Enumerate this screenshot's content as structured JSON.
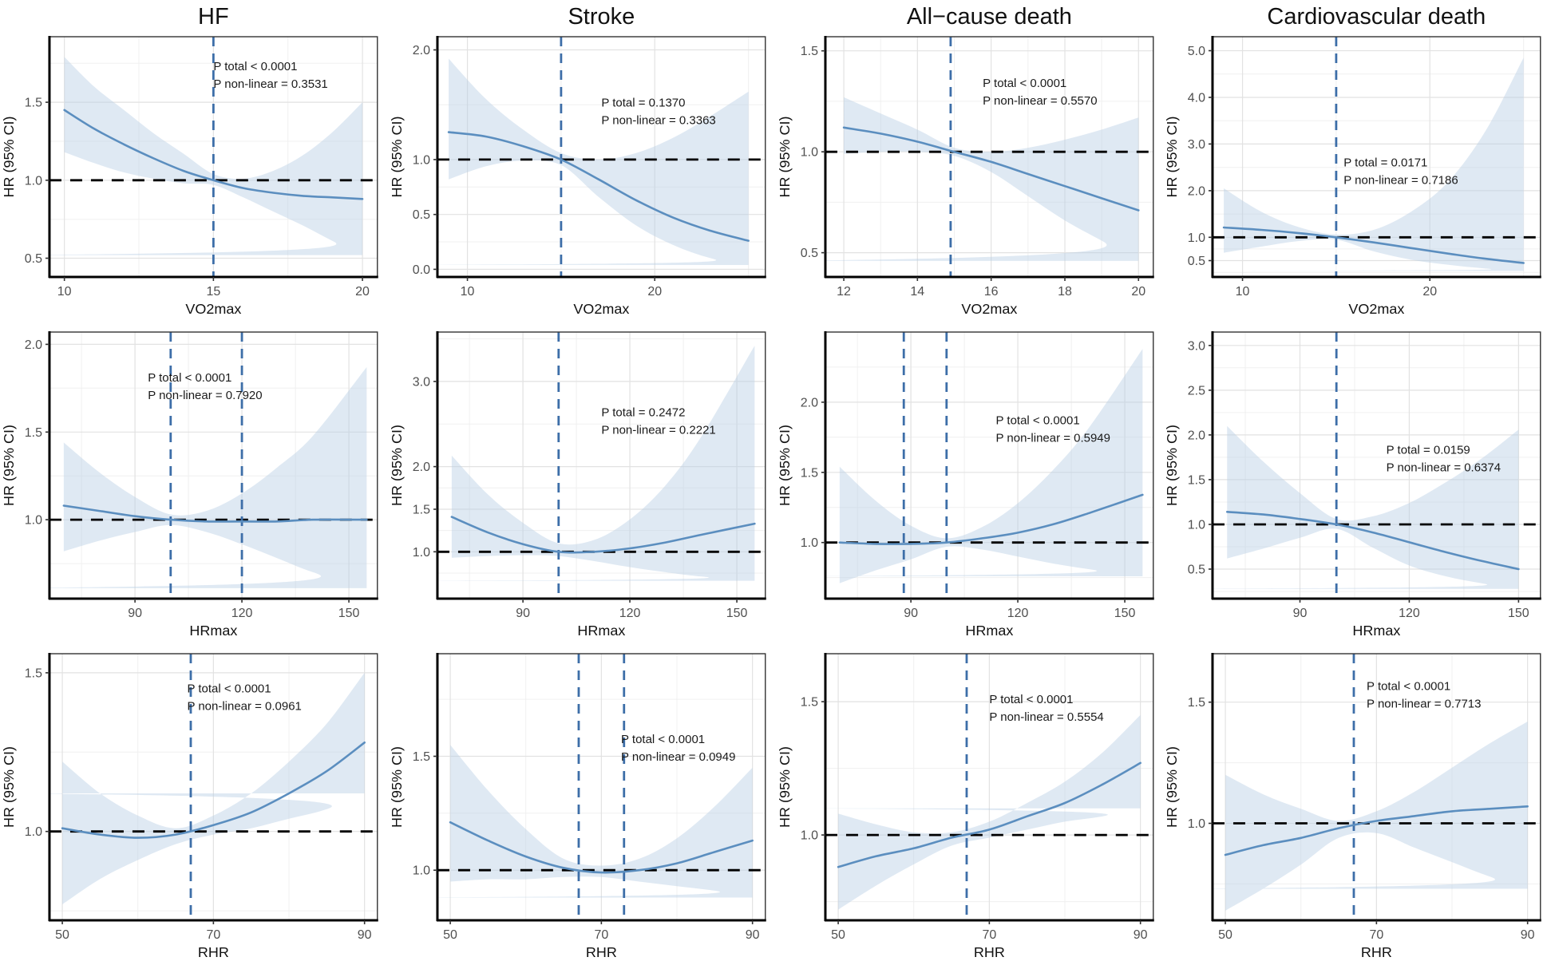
{
  "figure": {
    "ylabel": "HR (95% CI)",
    "columns": [
      "HF",
      "Stroke",
      "All-cause death",
      "Cardiovascular death"
    ],
    "rows": [
      "VO2max",
      "HRmax",
      "RHR"
    ],
    "colors": {
      "curve": "#5b8ebf",
      "band": "#b9cfe4",
      "vline": "#3d6ea8",
      "hline": "#000000",
      "grid_major": "#e2e2e2",
      "grid_minor": "#f0f0f0",
      "axis": "#000000",
      "border": "#333333",
      "tick_text": "#4f4f4f",
      "label_text": "#111111",
      "title_text": "#111111",
      "annot_text": "#1a1a1a"
    }
  },
  "chart_data": [
    {
      "type": "line",
      "outcome": "HF",
      "exposure": "VO2max",
      "title": "HF",
      "show_title": true,
      "xlabel": "VO2max",
      "ylabel": "HR (95% CI)",
      "xlim": [
        9.5,
        20.5
      ],
      "ylim": [
        0.38,
        1.92
      ],
      "x_ticks": [
        10,
        15,
        20
      ],
      "y_ticks": [
        0.5,
        1.0,
        1.5
      ],
      "vlines": [
        15
      ],
      "hline": 1.0,
      "annotations": [
        "P total < 0.0001",
        "P non-linear = 0.3531"
      ],
      "annot_xy": [
        0.5,
        0.1
      ],
      "x": [
        10,
        11,
        12,
        13,
        14,
        15,
        16,
        17,
        18,
        19,
        20
      ],
      "hr": [
        1.45,
        1.33,
        1.23,
        1.14,
        1.06,
        1.0,
        0.95,
        0.92,
        0.9,
        0.89,
        0.88
      ],
      "ci_upper": [
        1.79,
        1.6,
        1.45,
        1.3,
        1.17,
        1.04,
        1.01,
        1.06,
        1.16,
        1.31,
        1.5
      ],
      "ci_lower": [
        1.18,
        1.11,
        1.05,
        1.01,
        0.98,
        0.97,
        0.89,
        0.8,
        0.71,
        0.61,
        0.52
      ]
    },
    {
      "type": "line",
      "outcome": "Stroke",
      "exposure": "VO2max",
      "title": "Stroke",
      "show_title": true,
      "xlabel": "VO2max",
      "ylabel": "HR (95% CI)",
      "xlim": [
        8.4,
        25.9
      ],
      "ylim": [
        -0.07,
        2.12
      ],
      "x_ticks": [
        10,
        20
      ],
      "y_ticks": [
        0.0,
        0.5,
        1.0,
        2.0
      ],
      "vlines": [
        15
      ],
      "hline": 1.0,
      "annotations": [
        "P total = 0.1370",
        "P non-linear = 0.3363"
      ],
      "annot_xy": [
        0.5,
        0.25
      ],
      "x": [
        9,
        11,
        13,
        15,
        17,
        19,
        21,
        23,
        25
      ],
      "hr": [
        1.25,
        1.21,
        1.12,
        1.0,
        0.82,
        0.63,
        0.47,
        0.35,
        0.26
      ],
      "ci_upper": [
        1.92,
        1.55,
        1.27,
        1.06,
        1.0,
        1.06,
        1.2,
        1.4,
        1.62
      ],
      "ci_lower": [
        0.82,
        0.94,
        0.99,
        0.95,
        0.66,
        0.4,
        0.22,
        0.1,
        0.04
      ]
    },
    {
      "type": "line",
      "outcome": "All-cause death",
      "exposure": "VO2max",
      "title": "All−cause death",
      "show_title": true,
      "xlabel": "VO2max",
      "ylabel": "HR (95% CI)",
      "xlim": [
        11.5,
        20.4
      ],
      "ylim": [
        0.38,
        1.57
      ],
      "x_ticks": [
        12,
        14,
        16,
        18,
        20
      ],
      "y_ticks": [
        0.5,
        1.0,
        1.5
      ],
      "vlines": [
        14.9
      ],
      "hline": 1.0,
      "annotations": [
        "P total < 0.0001",
        "P non-linear = 0.5570"
      ],
      "annot_xy": [
        0.48,
        0.17
      ],
      "x": [
        12,
        13,
        14,
        15,
        16,
        17,
        18,
        19,
        20
      ],
      "hr": [
        1.12,
        1.09,
        1.05,
        1.0,
        0.95,
        0.89,
        0.83,
        0.77,
        0.71
      ],
      "ci_upper": [
        1.27,
        1.19,
        1.11,
        1.02,
        1.0,
        1.02,
        1.06,
        1.11,
        1.17
      ],
      "ci_lower": [
        0.99,
        1.0,
        1.0,
        0.98,
        0.9,
        0.78,
        0.66,
        0.56,
        0.46
      ]
    },
    {
      "type": "line",
      "outcome": "Cardiovascular death",
      "exposure": "VO2max",
      "title": "Cardiovascular death",
      "show_title": true,
      "xlabel": "VO2max",
      "ylabel": "HR (95% CI)",
      "xlim": [
        8.4,
        25.9
      ],
      "ylim": [
        0.15,
        5.3
      ],
      "x_ticks": [
        10,
        20
      ],
      "y_ticks": [
        0.5,
        1.0,
        2.0,
        3.0,
        4.0,
        5.0
      ],
      "vlines": [
        15
      ],
      "hline": 1.0,
      "annotations": [
        "P total = 0.0171",
        "P non-linear = 0.7186"
      ],
      "annot_xy": [
        0.4,
        0.5
      ],
      "x": [
        9,
        11,
        13,
        15,
        17,
        19,
        21,
        23,
        25
      ],
      "hr": [
        1.21,
        1.16,
        1.09,
        1.0,
        0.89,
        0.77,
        0.65,
        0.54,
        0.45
      ],
      "ci_upper": [
        2.05,
        1.55,
        1.22,
        1.06,
        1.16,
        1.55,
        2.2,
        3.3,
        4.85
      ],
      "ci_lower": [
        0.67,
        0.8,
        0.92,
        0.95,
        0.7,
        0.52,
        0.41,
        0.33,
        0.28
      ]
    },
    {
      "type": "line",
      "outcome": "HF",
      "exposure": "HRmax",
      "title": "",
      "show_title": false,
      "xlabel": "HRmax",
      "ylabel": "HR (95% CI)",
      "xlim": [
        66,
        158
      ],
      "ylim": [
        0.55,
        2.07
      ],
      "x_ticks": [
        90,
        120,
        150
      ],
      "y_ticks": [
        1.0,
        1.5,
        2.0
      ],
      "vlines": [
        100,
        120
      ],
      "hline": 1.0,
      "annotations": [
        "P total < 0.0001",
        "P non-linear = 0.7920"
      ],
      "annot_xy": [
        0.3,
        0.15
      ],
      "x": [
        70,
        80,
        90,
        100,
        110,
        120,
        130,
        140,
        155
      ],
      "hr": [
        1.08,
        1.05,
        1.02,
        1.0,
        0.99,
        0.99,
        0.99,
        1.0,
        1.0
      ],
      "ci_upper": [
        1.44,
        1.27,
        1.13,
        1.03,
        1.05,
        1.15,
        1.3,
        1.48,
        1.87
      ],
      "ci_lower": [
        0.82,
        0.88,
        0.93,
        0.97,
        0.93,
        0.86,
        0.78,
        0.7,
        0.61
      ]
    },
    {
      "type": "line",
      "outcome": "Stroke",
      "exposure": "HRmax",
      "title": "",
      "show_title": false,
      "xlabel": "HRmax",
      "ylabel": "HR (95% CI)",
      "xlim": [
        66,
        158
      ],
      "ylim": [
        0.45,
        3.58
      ],
      "x_ticks": [
        90,
        120,
        150
      ],
      "y_ticks": [
        1.0,
        1.5,
        2.0,
        3.0
      ],
      "vlines": [
        100
      ],
      "hline": 1.0,
      "annotations": [
        "P total = 0.2472",
        "P non-linear = 0.2221"
      ],
      "annot_xy": [
        0.5,
        0.28
      ],
      "x": [
        70,
        80,
        90,
        100,
        110,
        120,
        130,
        140,
        155
      ],
      "hr": [
        1.41,
        1.23,
        1.09,
        1.0,
        1.0,
        1.04,
        1.11,
        1.2,
        1.33
      ],
      "ci_upper": [
        2.13,
        1.68,
        1.34,
        1.1,
        1.14,
        1.38,
        1.78,
        2.35,
        3.42
      ],
      "ci_lower": [
        0.93,
        0.95,
        0.96,
        0.95,
        0.89,
        0.82,
        0.76,
        0.71,
        0.66
      ]
    },
    {
      "type": "line",
      "outcome": "All-cause death",
      "exposure": "HRmax",
      "title": "",
      "show_title": false,
      "xlabel": "HRmax",
      "ylabel": "HR (95% CI)",
      "xlim": [
        66,
        158
      ],
      "ylim": [
        0.6,
        2.5
      ],
      "x_ticks": [
        90,
        120,
        150
      ],
      "y_ticks": [
        1.0,
        1.5,
        2.0
      ],
      "vlines": [
        88,
        100
      ],
      "hline": 1.0,
      "annotations": [
        "P total < 0.0001",
        "P non-linear = 0.5949"
      ],
      "annot_xy": [
        0.52,
        0.31
      ],
      "x": [
        70,
        80,
        90,
        100,
        110,
        120,
        130,
        140,
        155
      ],
      "hr": [
        1.0,
        0.99,
        0.99,
        1.0,
        1.03,
        1.07,
        1.13,
        1.21,
        1.34
      ],
      "ci_upper": [
        1.54,
        1.3,
        1.12,
        1.03,
        1.11,
        1.28,
        1.52,
        1.82,
        2.38
      ],
      "ci_lower": [
        0.71,
        0.8,
        0.88,
        0.97,
        0.95,
        0.9,
        0.85,
        0.81,
        0.76
      ]
    },
    {
      "type": "line",
      "outcome": "Cardiovascular death",
      "exposure": "HRmax",
      "title": "",
      "show_title": false,
      "xlabel": "HRmax",
      "ylabel": "HR (95% CI)",
      "xlim": [
        66,
        156
      ],
      "ylim": [
        0.17,
        3.15
      ],
      "x_ticks": [
        90,
        120,
        150
      ],
      "y_ticks": [
        0.5,
        1.0,
        1.5,
        2.0,
        2.5,
        3.0
      ],
      "vlines": [
        100
      ],
      "hline": 1.0,
      "annotations": [
        "P total = 0.0159",
        "P non-linear = 0.6374"
      ],
      "annot_xy": [
        0.53,
        0.42
      ],
      "x": [
        70,
        80,
        90,
        100,
        110,
        120,
        130,
        140,
        150
      ],
      "hr": [
        1.14,
        1.11,
        1.06,
        1.0,
        0.91,
        0.8,
        0.69,
        0.59,
        0.5
      ],
      "ci_upper": [
        2.1,
        1.7,
        1.35,
        1.06,
        1.09,
        1.24,
        1.47,
        1.74,
        2.06
      ],
      "ci_lower": [
        0.62,
        0.73,
        0.85,
        0.95,
        0.74,
        0.54,
        0.42,
        0.34,
        0.28
      ]
    },
    {
      "type": "line",
      "outcome": "HF",
      "exposure": "RHR",
      "title": "",
      "show_title": false,
      "xlabel": "RHR",
      "ylabel": "HR (95% CI)",
      "xlim": [
        48.3,
        91.7
      ],
      "ylim": [
        0.72,
        1.56
      ],
      "x_ticks": [
        50,
        70,
        90
      ],
      "y_ticks": [
        1.0,
        1.5
      ],
      "vlines": [
        67
      ],
      "hline": 1.0,
      "annotations": [
        "P total < 0.0001",
        "P non-linear = 0.0961"
      ],
      "annot_xy": [
        0.42,
        0.11
      ],
      "x": [
        50,
        55,
        60,
        65,
        70,
        75,
        80,
        85,
        90
      ],
      "hr": [
        1.01,
        0.99,
        0.98,
        0.99,
        1.02,
        1.06,
        1.12,
        1.19,
        1.28
      ],
      "ci_upper": [
        1.22,
        1.12,
        1.05,
        1.01,
        1.05,
        1.12,
        1.22,
        1.34,
        1.5
      ],
      "ci_lower": [
        0.77,
        0.85,
        0.91,
        0.96,
        0.99,
        1.01,
        1.04,
        1.07,
        1.12
      ]
    },
    {
      "type": "line",
      "outcome": "Stroke",
      "exposure": "RHR",
      "title": "",
      "show_title": false,
      "xlabel": "RHR",
      "ylabel": "HR (95% CI)",
      "xlim": [
        48.3,
        91.7
      ],
      "ylim": [
        0.78,
        1.95
      ],
      "x_ticks": [
        50,
        70,
        90
      ],
      "y_ticks": [
        1.0,
        1.5
      ],
      "vlines": [
        67,
        73
      ],
      "hline": 1.0,
      "annotations": [
        "P total < 0.0001",
        "P non-linear = 0.0949"
      ],
      "annot_xy": [
        0.56,
        0.3
      ],
      "x": [
        50,
        55,
        60,
        65,
        70,
        75,
        80,
        85,
        90
      ],
      "hr": [
        1.21,
        1.13,
        1.06,
        1.01,
        0.99,
        1.0,
        1.03,
        1.08,
        1.13
      ],
      "ci_upper": [
        1.55,
        1.35,
        1.18,
        1.05,
        1.02,
        1.05,
        1.14,
        1.28,
        1.45
      ],
      "ci_lower": [
        0.95,
        0.96,
        0.96,
        0.97,
        0.97,
        0.95,
        0.93,
        0.91,
        0.88
      ]
    },
    {
      "type": "line",
      "outcome": "All-cause death",
      "exposure": "RHR",
      "title": "",
      "show_title": false,
      "xlabel": "RHR",
      "ylabel": "HR (95% CI)",
      "xlim": [
        48.3,
        91.7
      ],
      "ylim": [
        0.68,
        1.68
      ],
      "x_ticks": [
        50,
        70,
        90
      ],
      "y_ticks": [
        1.0,
        1.5
      ],
      "vlines": [
        67
      ],
      "hline": 1.0,
      "annotations": [
        "P total < 0.0001",
        "P non-linear = 0.5554"
      ],
      "annot_xy": [
        0.5,
        0.15
      ],
      "x": [
        50,
        55,
        60,
        65,
        70,
        75,
        80,
        85,
        90
      ],
      "hr": [
        0.88,
        0.92,
        0.95,
        0.99,
        1.02,
        1.07,
        1.12,
        1.19,
        1.27
      ],
      "ci_upper": [
        1.08,
        1.04,
        1.01,
        1.01,
        1.05,
        1.12,
        1.2,
        1.31,
        1.45
      ],
      "ci_lower": [
        0.72,
        0.81,
        0.89,
        0.96,
        0.99,
        1.02,
        1.05,
        1.07,
        1.1
      ]
    },
    {
      "type": "line",
      "outcome": "Cardiovascular death",
      "exposure": "RHR",
      "title": "",
      "show_title": false,
      "xlabel": "RHR",
      "ylabel": "HR (95% CI)",
      "xlim": [
        48.3,
        91.7
      ],
      "ylim": [
        0.6,
        1.7
      ],
      "x_ticks": [
        50,
        70,
        90
      ],
      "y_ticks": [
        1.0,
        1.5
      ],
      "vlines": [
        67
      ],
      "hline": 1.0,
      "annotations": [
        "P total < 0.0001",
        "P non-linear = 0.7713"
      ],
      "annot_xy": [
        0.47,
        0.1
      ],
      "x": [
        50,
        55,
        60,
        65,
        70,
        75,
        80,
        85,
        90
      ],
      "hr": [
        0.87,
        0.91,
        0.94,
        0.98,
        1.01,
        1.03,
        1.05,
        1.06,
        1.07
      ],
      "ci_upper": [
        1.2,
        1.12,
        1.06,
        1.01,
        1.05,
        1.13,
        1.23,
        1.33,
        1.42
      ],
      "ci_lower": [
        0.64,
        0.73,
        0.83,
        0.94,
        0.96,
        0.9,
        0.84,
        0.78,
        0.73
      ]
    }
  ]
}
